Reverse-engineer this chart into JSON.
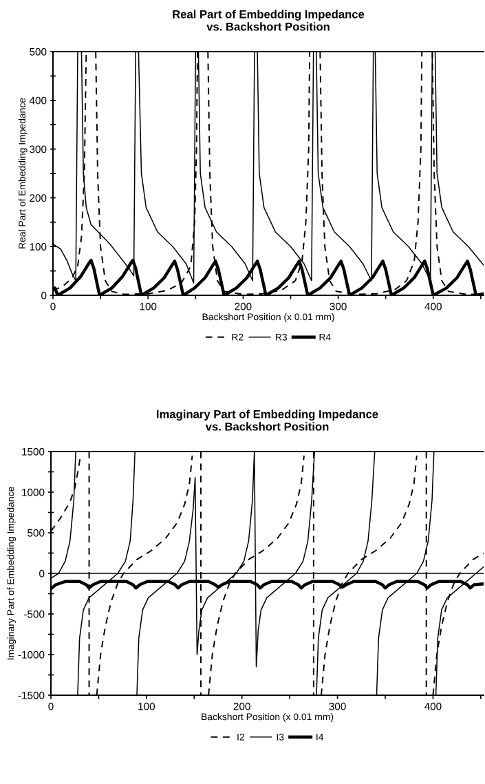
{
  "chart_data": [
    {
      "type": "line",
      "title": "Real Part of Embedding Impedance\nvs. Backshort Position",
      "xlabel": "Backshort Position (x 0.01 mm)",
      "ylabel": "Real Part of Embedding Impedance",
      "xlim": [
        0,
        453
      ],
      "ylim": [
        0,
        500
      ],
      "xticks": [
        0,
        {
          "value": 50,
          "label": null
        },
        100,
        {
          "value": 150,
          "label": null
        },
        200,
        {
          "value": 250,
          "label": null
        },
        300,
        {
          "value": 350,
          "label": null
        },
        400,
        {
          "value": 450,
          "label": null
        }
      ],
      "yticks": [
        0,
        {
          "value": 50,
          "label": null
        },
        100,
        {
          "value": 150,
          "label": null
        },
        200,
        {
          "value": 250,
          "label": null
        },
        300,
        {
          "value": 350,
          "label": null
        },
        400,
        {
          "value": 450,
          "label": null
        },
        500
      ],
      "grid": false,
      "legend": "bottom",
      "series": [
        {
          "name": "R2",
          "color": "#000000",
          "line_style": "dashed",
          "x": [
            0,
            10,
            20,
            26,
            30,
            33,
            35,
            40,
            45,
            47,
            50,
            55,
            62,
            75,
            100,
            120,
            135,
            145,
            149,
            151,
            152,
            157,
            163,
            165,
            168,
            173,
            180,
            200,
            220,
            240,
            255,
            262,
            266,
            269,
            270,
            275,
            281,
            283,
            286,
            291,
            298,
            320,
            340,
            360,
            372,
            380,
            384,
            387,
            388,
            393,
            399,
            401,
            404,
            409,
            416,
            435,
            453
          ],
          "values": [
            10,
            18,
            35,
            60,
            120,
            250,
            500,
            null,
            500,
            250,
            100,
            30,
            8,
            2,
            3,
            10,
            25,
            60,
            150,
            300,
            500,
            null,
            500,
            250,
            100,
            30,
            8,
            2,
            3,
            10,
            30,
            70,
            150,
            300,
            500,
            null,
            500,
            250,
            100,
            30,
            8,
            2,
            3,
            12,
            30,
            70,
            150,
            300,
            500,
            null,
            500,
            250,
            100,
            30,
            8,
            2,
            2
          ]
        },
        {
          "name": "R3",
          "color": "#000000",
          "line_style": "solid",
          "x": [
            0,
            8,
            15,
            20,
            24,
            26,
            28,
            30,
            32,
            35,
            40,
            50,
            60,
            70,
            80,
            85,
            87,
            88,
            90,
            93,
            98,
            110,
            126,
            140,
            148,
            150,
            151,
            153,
            155,
            160,
            172,
            188,
            202,
            210,
            212,
            213,
            215,
            217,
            222,
            234,
            250,
            264,
            272,
            274,
            275,
            277,
            279,
            284,
            296,
            312,
            326,
            335,
            337,
            338,
            339,
            341,
            346,
            358,
            374,
            388,
            397,
            399,
            400,
            402,
            404,
            409,
            421,
            437,
            453
          ],
          "values": [
            105,
            95,
            70,
            45,
            30,
            500,
            null,
            500,
            250,
            180,
            145,
            125,
            105,
            80,
            55,
            40,
            500,
            null,
            500,
            250,
            180,
            130,
            100,
            65,
            25,
            500,
            null,
            500,
            250,
            180,
            130,
            100,
            65,
            30,
            500,
            null,
            500,
            250,
            180,
            130,
            100,
            65,
            30,
            500,
            null,
            500,
            250,
            180,
            130,
            100,
            65,
            30,
            500,
            null,
            500,
            250,
            180,
            130,
            100,
            65,
            30,
            500,
            null,
            500,
            250,
            180,
            130,
            100,
            62
          ]
        },
        {
          "name": "R4",
          "color": "#000000",
          "line_style": "solid",
          "x": [
            0,
            2,
            5,
            18,
            29,
            36,
            40,
            43,
            49,
            62,
            73,
            80,
            84,
            87,
            93,
            106,
            117,
            124,
            128,
            131,
            137,
            149,
            160,
            167,
            171,
            174,
            180,
            193,
            204,
            211,
            215,
            218,
            224,
            237,
            248,
            255,
            259,
            262,
            268,
            281,
            292,
            299,
            303,
            306,
            312,
            325,
            336,
            343,
            347,
            350,
            356,
            369,
            380,
            387,
            391,
            394,
            400,
            414,
            425,
            432,
            436,
            439,
            445,
            453
          ],
          "values": [
            12,
            15,
            0,
            15,
            38,
            60,
            72,
            55,
            0,
            15,
            38,
            60,
            72,
            55,
            0,
            15,
            36,
            58,
            70,
            53,
            0,
            15,
            36,
            58,
            70,
            53,
            0,
            15,
            36,
            58,
            70,
            53,
            0,
            15,
            36,
            58,
            70,
            53,
            0,
            15,
            36,
            58,
            70,
            53,
            0,
            15,
            36,
            58,
            70,
            53,
            0,
            15,
            36,
            58,
            70,
            53,
            0,
            15,
            36,
            58,
            70,
            53,
            0,
            3
          ]
        }
      ]
    },
    {
      "type": "line",
      "title": "Imaginary Part of Embedding Impedance\nvs. Backshort Position",
      "xlabel": "Backshort Position (x 0.01 mm)",
      "ylabel": "Imaginary Part of Embedding Impedance",
      "xlim": [
        0,
        453
      ],
      "ylim": [
        -1500,
        1500
      ],
      "xticks": [
        0,
        {
          "value": 50,
          "label": null
        },
        100,
        {
          "value": 150,
          "label": null
        },
        200,
        {
          "value": 250,
          "label": null
        },
        300,
        {
          "value": 350,
          "label": null
        },
        400,
        {
          "value": 450,
          "label": null
        }
      ],
      "yticks": [
        -1500,
        {
          "value": -1250,
          "label": null
        },
        -1000,
        {
          "value": -750,
          "label": null
        },
        -500,
        {
          "value": -250,
          "label": null
        },
        0,
        {
          "value": 250,
          "label": null
        },
        500,
        {
          "value": 750,
          "label": null
        },
        1000,
        {
          "value": 1250,
          "label": null
        },
        1500
      ],
      "ref_lines": [
        {
          "axis": "y",
          "value": 0,
          "color": "#000000"
        }
      ],
      "grid": false,
      "legend": "bottom",
      "series": [
        {
          "name": "I2",
          "color": "#000000",
          "line_style": "dashed",
          "x": [
            0,
            10,
            20,
            25,
            29,
            31,
            35,
            40,
            40,
            44,
            48,
            52,
            57,
            63,
            70,
            76,
            90,
            105,
            120,
            132,
            140,
            145,
            148,
            152,
            157,
            157,
            161,
            165,
            169,
            174,
            180,
            187,
            193,
            207,
            222,
            237,
            249,
            257,
            262,
            265,
            270,
            275,
            275,
            279,
            283,
            287,
            292,
            298,
            305,
            311,
            325,
            340,
            355,
            367,
            375,
            380,
            383,
            388,
            393,
            393,
            397,
            400,
            404,
            409,
            415,
            422,
            428,
            442,
            453
          ],
          "values": [
            520,
            680,
            880,
            1050,
            1300,
            1450,
            null,
            1500,
            -1500,
            null,
            -1500,
            -1000,
            -650,
            -350,
            -120,
            0,
            170,
            280,
            430,
            620,
            850,
            1100,
            1450,
            null,
            1500,
            -1500,
            null,
            -1500,
            -1000,
            -650,
            -350,
            -120,
            0,
            170,
            280,
            430,
            620,
            850,
            1100,
            1450,
            null,
            1500,
            -1500,
            null,
            -1500,
            -1000,
            -650,
            -350,
            -120,
            0,
            170,
            280,
            430,
            620,
            850,
            1100,
            1450,
            null,
            1500,
            -1500,
            null,
            -1500,
            -1000,
            -650,
            -350,
            -120,
            0,
            170,
            250
          ]
        },
        {
          "name": "I3",
          "color": "#000000",
          "line_style": "solid",
          "x": [
            0,
            8,
            15,
            20,
            24,
            26,
            27,
            28,
            30,
            34,
            40,
            50,
            60,
            70,
            78,
            83,
            86,
            88,
            89,
            90,
            92,
            96,
            102,
            112,
            122,
            132,
            140,
            145,
            149,
            151,
            153,
            155,
            158,
            164,
            174,
            184,
            194,
            202,
            207,
            211,
            213,
            215,
            217,
            220,
            226,
            236,
            246,
            256,
            264,
            269,
            273,
            276,
            277,
            278,
            280,
            284,
            290,
            300,
            310,
            320,
            327,
            332,
            336,
            339,
            340,
            341,
            343,
            347,
            353,
            363,
            373,
            383,
            390,
            395,
            399,
            401,
            402,
            403,
            405,
            409,
            415,
            425,
            435,
            445,
            453
          ],
          "values": [
            -60,
            0,
            150,
            400,
            900,
            1500,
            null,
            -1500,
            -800,
            -450,
            -300,
            -200,
            -100,
            0,
            150,
            400,
            900,
            1500,
            null,
            -1500,
            -800,
            -450,
            -300,
            -200,
            -100,
            0,
            150,
            400,
            800,
            1180,
            -1000,
            -700,
            -450,
            -300,
            -200,
            -100,
            0,
            150,
            400,
            900,
            1500,
            -1150,
            -700,
            -450,
            -300,
            -200,
            -100,
            0,
            150,
            400,
            900,
            1500,
            null,
            -1500,
            -800,
            -450,
            -300,
            -200,
            -100,
            0,
            150,
            400,
            900,
            1500,
            null,
            -1500,
            -800,
            -450,
            -300,
            -200,
            -100,
            0,
            150,
            400,
            900,
            1500,
            null,
            -1500,
            -800,
            -450,
            -300,
            -200,
            -100,
            0,
            80
          ]
        },
        {
          "name": "I4",
          "color": "#000000",
          "line_style": "solid",
          "x": [
            0,
            5,
            15,
            30,
            37,
            40,
            44,
            52,
            79,
            86,
            89,
            93,
            101,
            123,
            130,
            133,
            137,
            145,
            165,
            172,
            175,
            179,
            187,
            209,
            216,
            219,
            223,
            231,
            252,
            259,
            262,
            266,
            274,
            295,
            302,
            305,
            309,
            317,
            340,
            347,
            350,
            354,
            362,
            384,
            391,
            394,
            398,
            406,
            429,
            436,
            439,
            443,
            453
          ],
          "values": [
            -190,
            -140,
            -100,
            -100,
            -140,
            -180,
            -140,
            -100,
            -100,
            -140,
            -180,
            -140,
            -100,
            -100,
            -140,
            -180,
            -140,
            -100,
            -100,
            -140,
            -170,
            -140,
            -100,
            -100,
            -140,
            -180,
            -140,
            -100,
            -100,
            -140,
            -180,
            -140,
            -100,
            -100,
            -140,
            -170,
            -140,
            -100,
            -100,
            -140,
            -180,
            -140,
            -100,
            -100,
            -140,
            -180,
            -140,
            -100,
            -100,
            -140,
            -180,
            -140,
            -130
          ]
        }
      ]
    }
  ]
}
